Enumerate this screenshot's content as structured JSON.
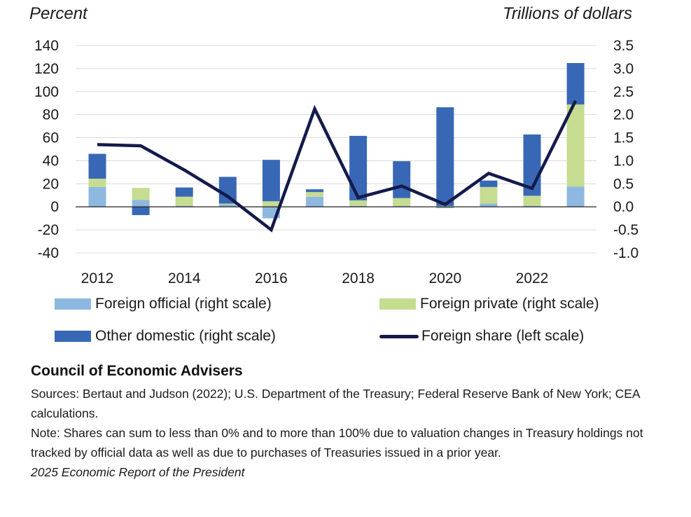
{
  "chart_data": {
    "type": "bar+line",
    "left_axis": {
      "title": "Percent",
      "ylim": [
        -40,
        140
      ],
      "ticks": [
        140,
        120,
        100,
        80,
        60,
        40,
        20,
        0,
        -20,
        -40
      ]
    },
    "right_axis": {
      "title": "Trillions of dollars",
      "ylim": [
        -1.0,
        3.5
      ],
      "ticks": [
        "3.5",
        "3.0",
        "2.5",
        "2.0",
        "1.5",
        "1.0",
        "0.5",
        "0.0",
        "-0.5",
        "-1.0"
      ]
    },
    "years": [
      2012,
      2013,
      2014,
      2015,
      2016,
      2017,
      2018,
      2019,
      2020,
      2021,
      2022,
      2023
    ],
    "x_tick_labels": [
      "2012",
      "2014",
      "2016",
      "2018",
      "2020",
      "2022"
    ],
    "bar_series": [
      {
        "name": "Foreign official (right scale)",
        "color": "#8fb8e0",
        "values": [
          0.43,
          0.15,
          0.02,
          0.05,
          -0.25,
          0.22,
          0.02,
          0.02,
          -0.03,
          0.07,
          0.02,
          0.44
        ]
      },
      {
        "name": "Foreign private (right scale)",
        "color": "#c5dc91",
        "values": [
          0.18,
          0.26,
          0.2,
          0.02,
          0.12,
          0.1,
          0.12,
          0.17,
          0.02,
          0.36,
          0.22,
          1.78
        ]
      },
      {
        "name": "Other domestic (right scale)",
        "color": "#3868b5",
        "values": [
          0.54,
          -0.18,
          0.2,
          0.58,
          0.9,
          0.06,
          1.4,
          0.8,
          2.14,
          0.14,
          1.33,
          0.9
        ]
      }
    ],
    "line_series": {
      "name": "Foreign share (left scale)",
      "color": "#141a4a",
      "values": [
        54,
        53,
        32,
        9,
        -20,
        85,
        8,
        18,
        2,
        29,
        16,
        92
      ]
    }
  },
  "legend": {
    "foreign_official": "Foreign official (right scale)",
    "foreign_private": "Foreign private (right scale)",
    "other_domestic": "Other domestic (right scale)",
    "foreign_share": "Foreign share (left scale)"
  },
  "footer": {
    "org": "Council of Economic Advisers",
    "sources": "Sources: Bertaut and Judson (2022); U.S. Department of the Treasury; Federal Reserve Bank of New York; CEA calculations.",
    "note": "Note: Shares can sum to less than 0% and to more than 100% due to valuation changes in Treasury holdings not tracked by official data as well as due to purchases of Treasuries issued in a prior year.",
    "report": "2025 Economic Report of the President"
  },
  "colors": {
    "gridline": "#d9d9d9",
    "zero_line": "#222222",
    "text": "#1a1a1a"
  }
}
